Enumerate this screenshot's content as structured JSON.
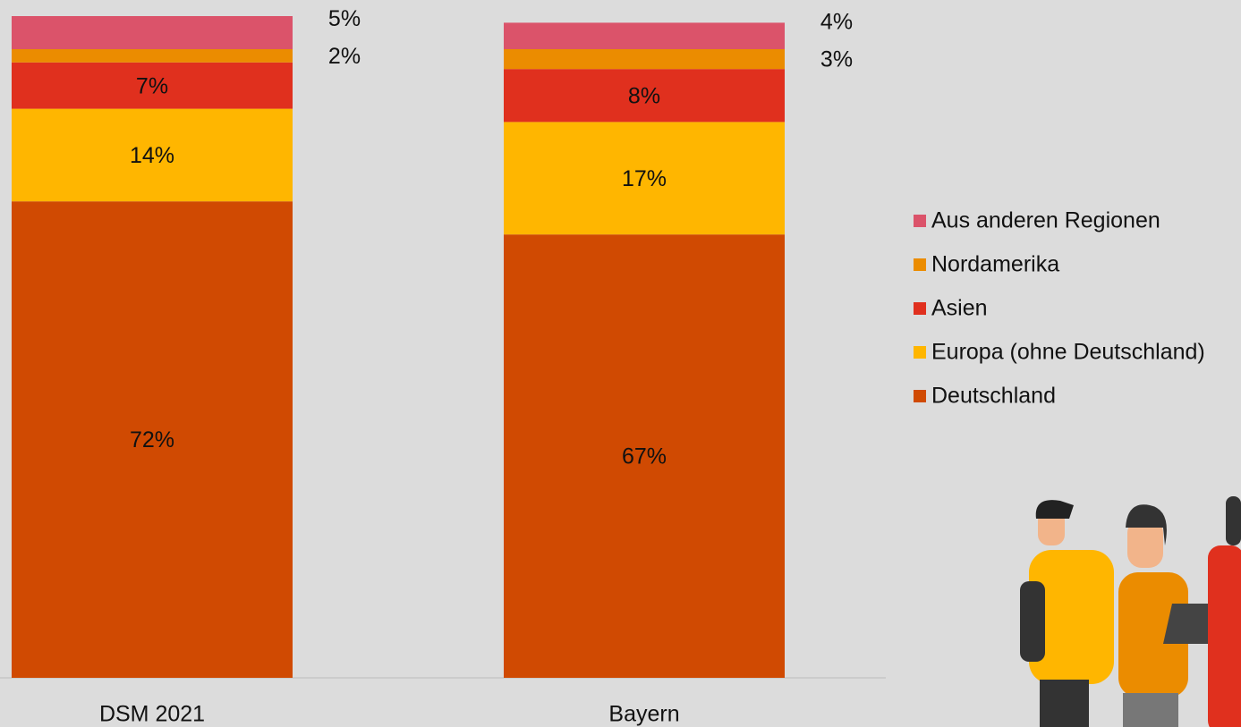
{
  "chart_data": {
    "type": "stacked_bar",
    "categories": [
      "DSM 2021",
      "Bayern"
    ],
    "ylim": [
      0,
      100
    ],
    "legend": "right",
    "series": [
      {
        "name": "Deutschland",
        "color": "#d04a02",
        "values": [
          72,
          67
        ],
        "value_labels": [
          "72%",
          "67%"
        ]
      },
      {
        "name": "Europa (ohne Deutschland)",
        "color": "#ffb600",
        "values": [
          14,
          17
        ],
        "value_labels": [
          "14%",
          "17%"
        ]
      },
      {
        "name": "Asien",
        "color": "#e0301e",
        "values": [
          7,
          8
        ],
        "value_labels": [
          "7%",
          "8%"
        ]
      },
      {
        "name": "Nordamerika",
        "color": "#eb8c00",
        "values": [
          2,
          3
        ],
        "value_labels": [
          "2%",
          "3%"
        ]
      },
      {
        "name": "Aus anderen Regionen",
        "color": "#db536a",
        "values": [
          5,
          4
        ],
        "value_labels": [
          "5%",
          "4%"
        ]
      }
    ]
  }
}
